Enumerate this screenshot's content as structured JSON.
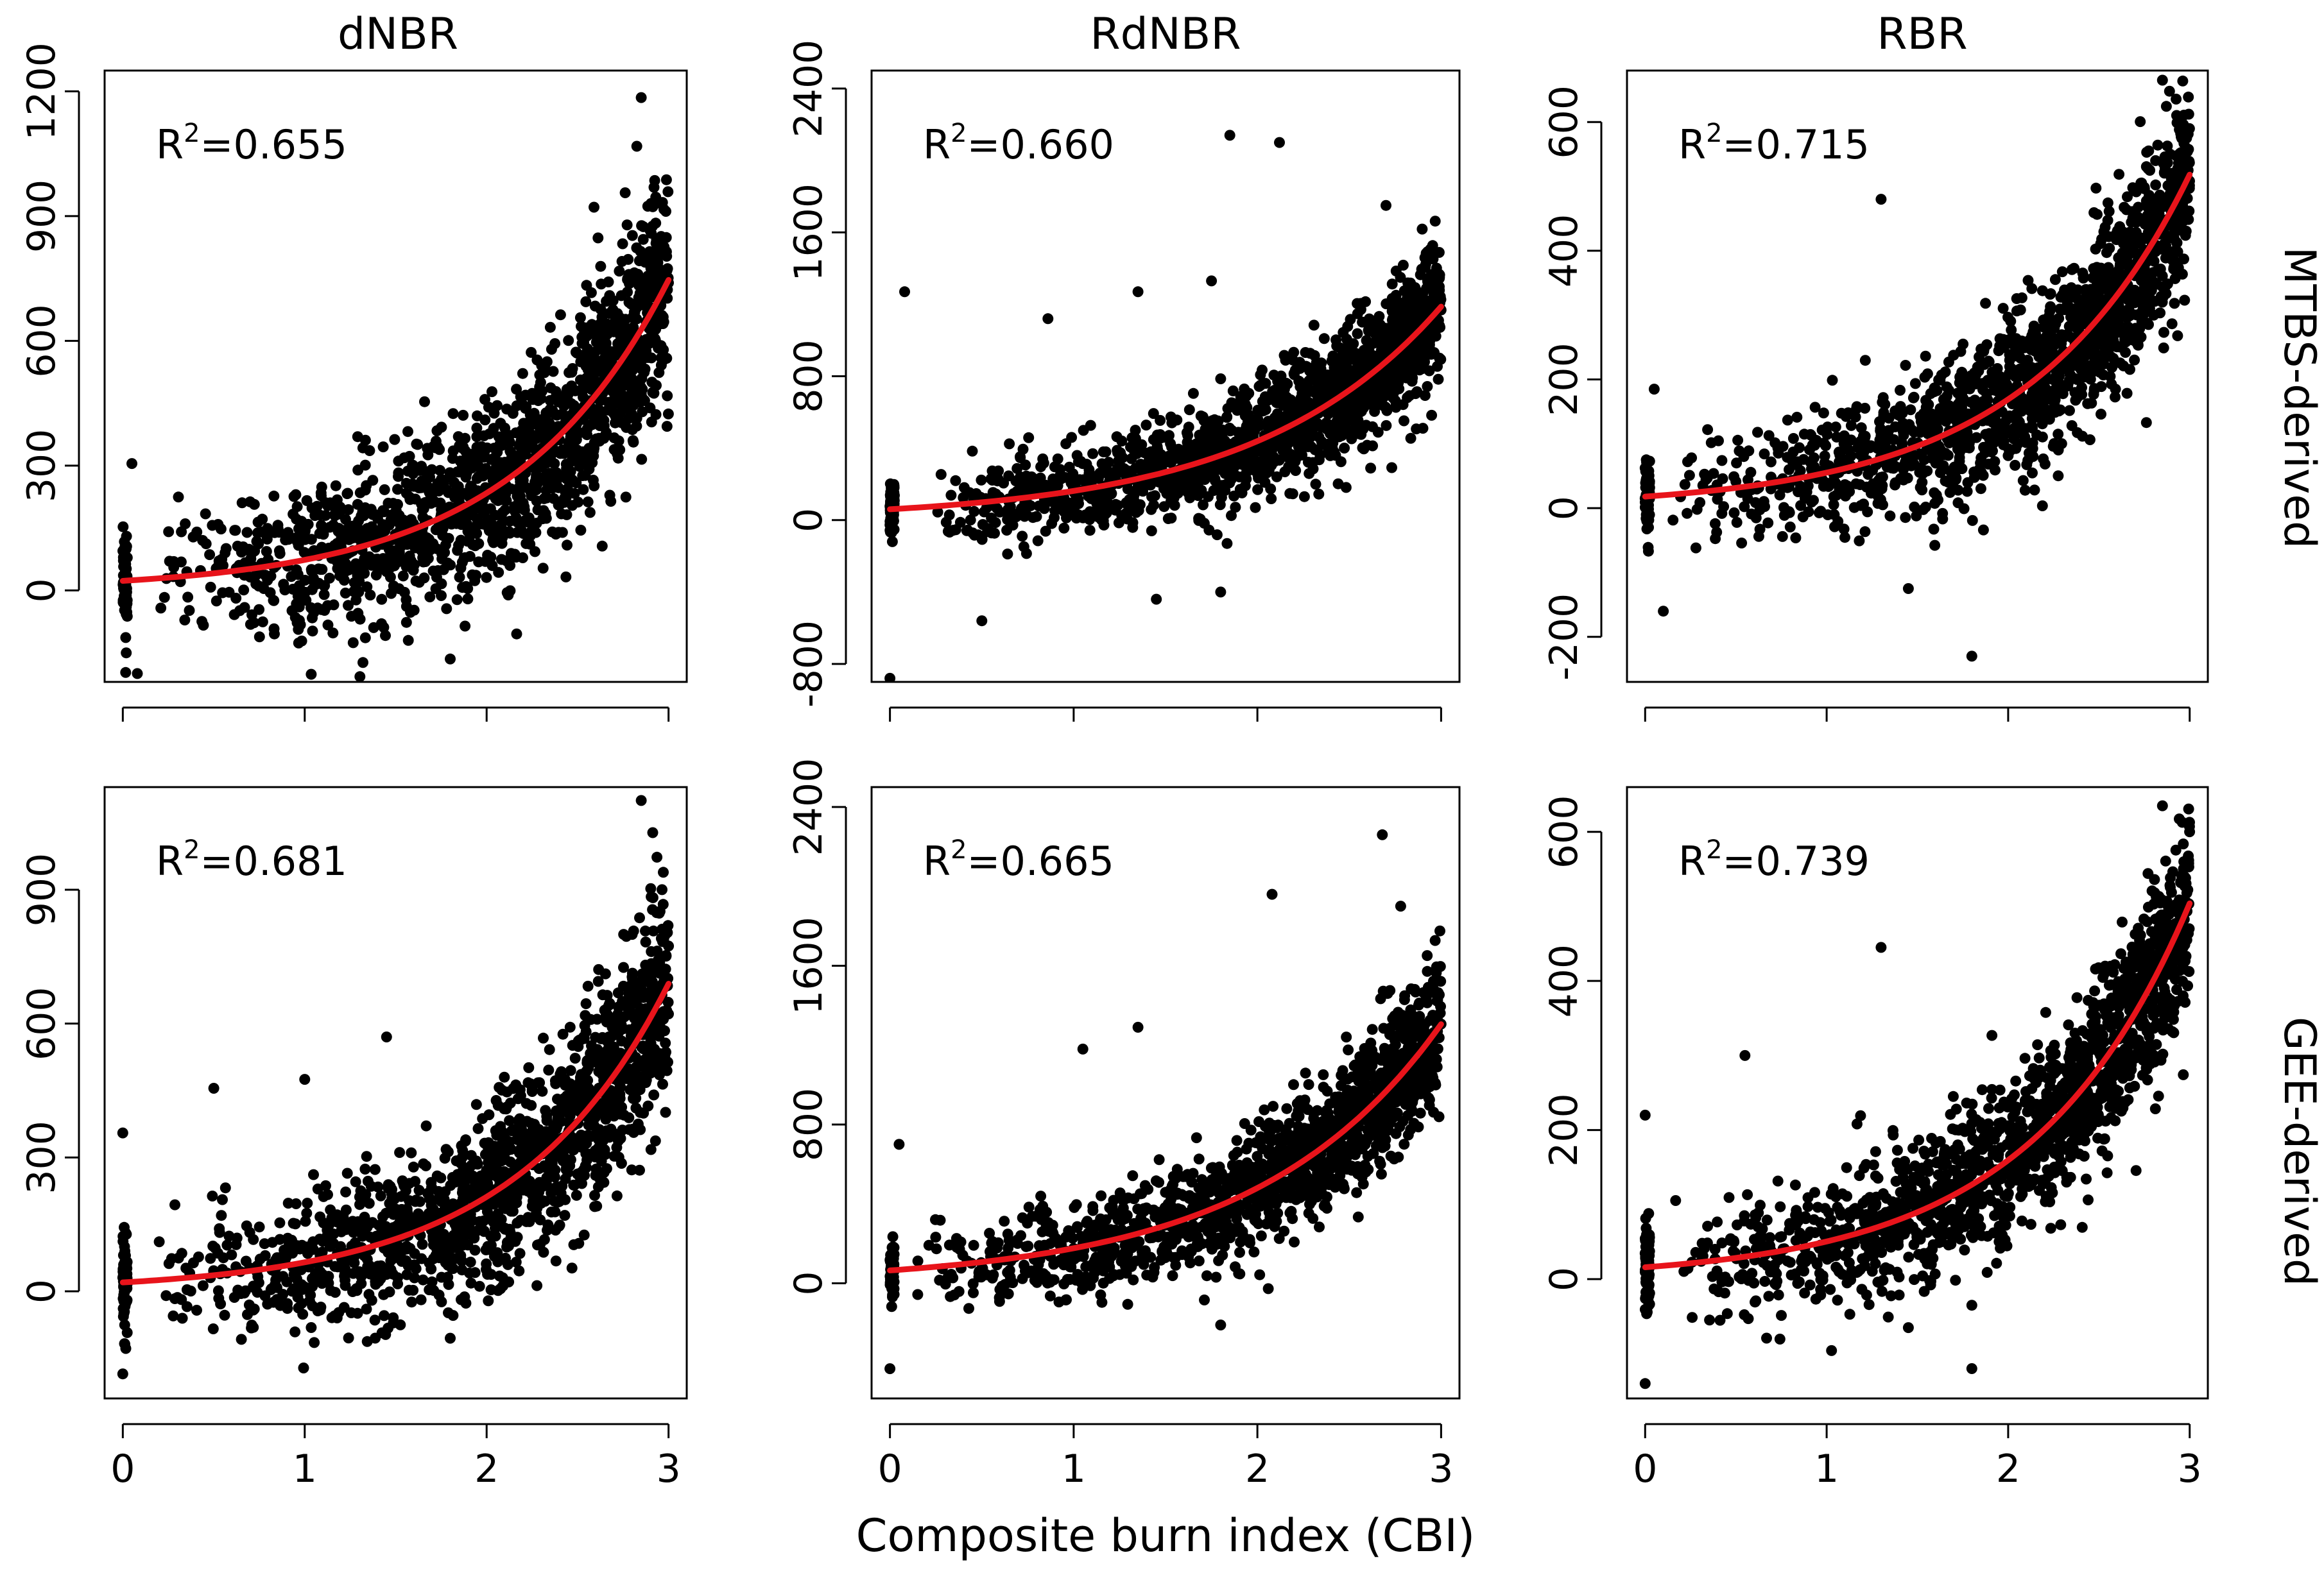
{
  "figure": {
    "x_axis_title": "Composite burn index (CBI)",
    "column_titles": [
      "dNBR",
      "RdNBR",
      "RBR"
    ],
    "row_labels": [
      "MTBS-derived",
      "GEE-derived"
    ],
    "x_ticks": [
      "0",
      "1",
      "2",
      "3"
    ]
  },
  "colors": {
    "points": "#000000",
    "fit": "#e8141b",
    "axes": "#000000"
  },
  "chart_data": [
    {
      "type": "scatter",
      "id": "mtbs-dnbr",
      "row": "MTBS-derived",
      "column": "dNBR",
      "r2_prefix": "R",
      "r2_sup": "2",
      "r2_value": "=0.655",
      "xlim": [
        -0.1,
        3.1
      ],
      "ylim": [
        -220,
        1250
      ],
      "yticks": [
        0,
        300,
        600,
        900,
        1200
      ],
      "ytick_labels": [
        "0",
        "300",
        "600",
        "900",
        "1200"
      ],
      "fit": {
        "a": 23,
        "b": 1.16
      },
      "scatter": {
        "n": 1500,
        "noise": 130,
        "seed": 11,
        "outliers": [
          [
            2.85,
            1185
          ],
          [
            1.8,
            -165
          ],
          [
            0.05,
            305
          ],
          [
            0.08,
            -200
          ]
        ]
      }
    },
    {
      "type": "scatter",
      "id": "mtbs-rdnbr",
      "row": "MTBS-derived",
      "column": "RdNBR",
      "r2_prefix": "R",
      "r2_sup": "2",
      "r2_value": "=0.660",
      "xlim": [
        -0.1,
        3.1
      ],
      "ylim": [
        -900,
        2500
      ],
      "yticks": [
        -800,
        0,
        800,
        1600,
        2400
      ],
      "ytick_labels": [
        "-800",
        "0",
        "800",
        "1600",
        "2400"
      ],
      "fit": {
        "a": 60,
        "b": 0.995
      },
      "scatter": {
        "n": 1500,
        "noise": 180,
        "seed": 23,
        "outliers": [
          [
            1.85,
            2140
          ],
          [
            2.12,
            2100
          ],
          [
            0.08,
            1270
          ],
          [
            0.86,
            1120
          ],
          [
            1.35,
            1270
          ],
          [
            1.75,
            1330
          ],
          [
            2.7,
            1750
          ],
          [
            1.45,
            -440
          ],
          [
            1.8,
            -400
          ],
          [
            0.5,
            -560
          ],
          [
            0.0,
            -880
          ]
        ]
      }
    },
    {
      "type": "scatter",
      "id": "mtbs-rbr",
      "row": "MTBS-derived",
      "column": "RBR",
      "r2_prefix": "R",
      "r2_sup": "2",
      "r2_value": "=0.715",
      "xlim": [
        -0.1,
        3.1
      ],
      "ylim": [
        -270,
        680
      ],
      "yticks": [
        -200,
        0,
        200,
        400,
        600
      ],
      "ytick_labels": [
        "-200",
        "0",
        "200",
        "400",
        "600"
      ],
      "fit": {
        "a": 18,
        "b": 1.12
      },
      "scatter": {
        "n": 1500,
        "noise": 70,
        "seed": 37,
        "outliers": [
          [
            2.85,
            665
          ],
          [
            1.8,
            -230
          ],
          [
            1.45,
            -125
          ],
          [
            1.3,
            480
          ],
          [
            0.05,
            185
          ],
          [
            0.1,
            -160
          ]
        ]
      }
    },
    {
      "type": "scatter",
      "id": "gee-dnbr",
      "row": "GEE-derived",
      "column": "dNBR",
      "r2_prefix": "R",
      "r2_sup": "2",
      "r2_value": "=0.681",
      "xlim": [
        -0.1,
        3.1
      ],
      "ylim": [
        -240,
        1130
      ],
      "yticks": [
        0,
        300,
        600,
        900
      ],
      "ytick_labels": [
        "0",
        "300",
        "600",
        "900"
      ],
      "fit": {
        "a": 20,
        "b": 1.18
      },
      "scatter": {
        "n": 1500,
        "noise": 115,
        "seed": 53,
        "outliers": [
          [
            2.85,
            1100
          ],
          [
            1.8,
            -105
          ],
          [
            0.0,
            -185
          ],
          [
            0.0,
            355
          ],
          [
            0.5,
            455
          ],
          [
            1.0,
            475
          ],
          [
            1.45,
            570
          ]
        ]
      }
    },
    {
      "type": "scatter",
      "id": "gee-rdnbr",
      "row": "GEE-derived",
      "column": "RdNBR",
      "r2_prefix": "R",
      "r2_sup": "2",
      "r2_value": "=0.665",
      "xlim": [
        -0.1,
        3.1
      ],
      "ylim": [
        -580,
        2500
      ],
      "yticks": [
        0,
        800,
        1600,
        2400
      ],
      "ytick_labels": [
        "0",
        "800",
        "1600",
        "2400"
      ],
      "fit": {
        "a": 65,
        "b": 1.0
      },
      "scatter": {
        "n": 1500,
        "noise": 170,
        "seed": 71,
        "outliers": [
          [
            2.68,
            2260
          ],
          [
            2.08,
            1960
          ],
          [
            2.78,
            1900
          ],
          [
            1.35,
            1290
          ],
          [
            1.8,
            -210
          ],
          [
            0.0,
            -430
          ],
          [
            0.05,
            700
          ],
          [
            1.05,
            1180
          ]
        ]
      }
    },
    {
      "type": "scatter",
      "id": "gee-rbr",
      "row": "GEE-derived",
      "column": "RBR",
      "r2_prefix": "R",
      "r2_sup": "2",
      "r2_value": "=0.739",
      "xlim": [
        -0.1,
        3.1
      ],
      "ylim": [
        -160,
        660
      ],
      "yticks": [
        0,
        200,
        400,
        600
      ],
      "ytick_labels": [
        "0",
        "200",
        "400",
        "600"
      ],
      "fit": {
        "a": 16,
        "b": 1.15
      },
      "scatter": {
        "n": 1500,
        "noise": 62,
        "seed": 89,
        "outliers": [
          [
            2.85,
            635
          ],
          [
            1.8,
            -120
          ],
          [
            1.8,
            -35
          ],
          [
            1.45,
            -65
          ],
          [
            1.3,
            445
          ],
          [
            0.0,
            220
          ],
          [
            0.0,
            -140
          ],
          [
            0.55,
            300
          ]
        ]
      }
    }
  ]
}
